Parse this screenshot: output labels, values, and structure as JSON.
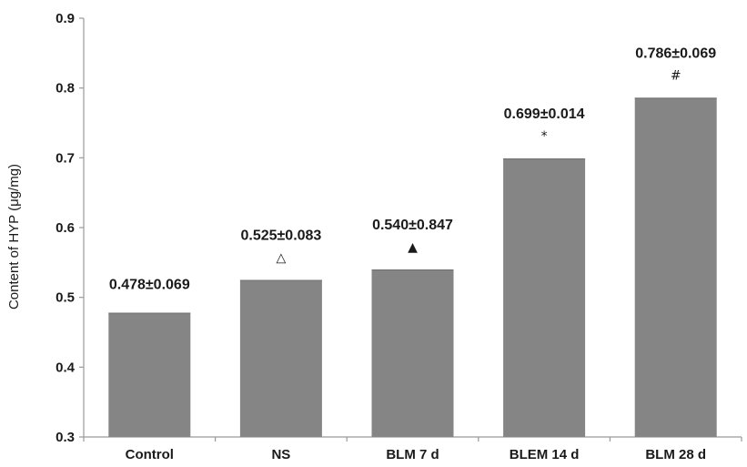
{
  "chart_data": {
    "type": "bar",
    "categories": [
      "Control",
      "NS",
      "BLM 7 d",
      "BLEM 14 d",
      "BLM 28 d"
    ],
    "values": [
      0.478,
      0.525,
      0.54,
      0.699,
      0.786
    ],
    "data_labels": [
      "0.478±0.069",
      "0.525±0.083",
      "0.540±0.847",
      "0.699±0.014",
      "0.786±0.069"
    ],
    "markers": [
      "",
      "△",
      "▲",
      "*",
      "#"
    ],
    "ylabel": "Content of HYP (μg/mg)",
    "xlabel": "",
    "title": "",
    "ylim": [
      0.3,
      0.9
    ],
    "yticks": [
      "0.3",
      "0.4",
      "0.5",
      "0.6",
      "0.7",
      "0.8",
      "0.9"
    ],
    "grid": false,
    "legend": "none",
    "bar_color": "#858585",
    "axis_color": "#9a9a9a"
  }
}
